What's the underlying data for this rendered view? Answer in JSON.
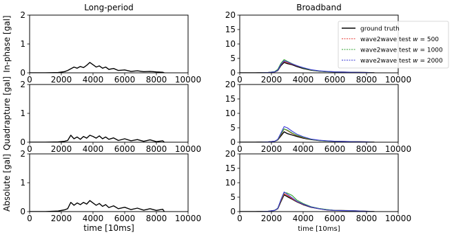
{
  "chart_data": [
    {
      "type": "line",
      "title": "Long-period",
      "ylabel": "In-phase [gal]",
      "xlabel": "",
      "xlim": [
        0,
        10000
      ],
      "ylim": [
        0,
        2
      ],
      "xticks": [
        "0",
        "2000",
        "4000",
        "6000",
        "8000",
        "10000"
      ],
      "yticks": [
        "0",
        "1",
        "2"
      ],
      "series": [
        {
          "color": "#000000",
          "x": [
            0,
            1000,
            1800,
            2200,
            2400,
            2600,
            2800,
            3000,
            3200,
            3400,
            3600,
            3800,
            4000,
            4200,
            4400,
            4600,
            4800,
            5000,
            5300,
            5600,
            6000,
            6400,
            6800,
            7200,
            7600,
            8000,
            8400,
            8500
          ],
          "y": [
            0,
            0,
            0.01,
            0.04,
            0.08,
            0.14,
            0.2,
            0.16,
            0.22,
            0.18,
            0.26,
            0.36,
            0.28,
            0.2,
            0.24,
            0.16,
            0.2,
            0.12,
            0.15,
            0.08,
            0.1,
            0.05,
            0.07,
            0.04,
            0.05,
            0.03,
            0.02,
            0.0
          ]
        }
      ]
    },
    {
      "type": "line",
      "title": "Broadband",
      "xlabel": "",
      "xlim": [
        0,
        10000
      ],
      "ylim": [
        0,
        20
      ],
      "xticks": [
        "0",
        "2000",
        "4000",
        "6000",
        "8000",
        "10000"
      ],
      "yticks": [
        "0",
        "5",
        "10",
        "15",
        "20"
      ],
      "legend": "top-right",
      "series": [
        {
          "name": "ground truth",
          "color": "#000000",
          "x": [
            0,
            1000,
            1800,
            2200,
            2400,
            2600,
            2800,
            3000,
            3300,
            3600,
            4000,
            4500,
            5000,
            5500,
            6000,
            7000,
            8000,
            8500
          ],
          "y": [
            0,
            0,
            0.1,
            0.3,
            0.8,
            2.5,
            3.6,
            3.2,
            2.8,
            2.2,
            1.5,
            0.9,
            0.6,
            0.4,
            0.3,
            0.2,
            0.1,
            0
          ]
        },
        {
          "name": "wave2wave test $w = 500$",
          "color": "#e8423b",
          "x": [
            0,
            1000,
            1800,
            2200,
            2400,
            2600,
            2800,
            3000,
            3300,
            3600,
            4000,
            4500,
            5000,
            5500,
            6000,
            7000,
            8000,
            8500
          ],
          "y": [
            0,
            0,
            0.1,
            0.3,
            0.9,
            2.8,
            4.0,
            3.5,
            3.0,
            2.4,
            1.7,
            1.0,
            0.6,
            0.4,
            0.3,
            0.2,
            0.1,
            0
          ]
        },
        {
          "name": "wave2wave test $w = 1000$",
          "color": "#2ca02c",
          "x": [
            0,
            1000,
            1800,
            2200,
            2400,
            2600,
            2800,
            3000,
            3300,
            3600,
            4000,
            4500,
            5000,
            5500,
            6000,
            7000,
            8000,
            8500
          ],
          "y": [
            0,
            0,
            0.1,
            0.4,
            1.2,
            3.3,
            4.6,
            4.0,
            3.2,
            2.5,
            1.7,
            1.0,
            0.6,
            0.4,
            0.3,
            0.2,
            0.1,
            0
          ]
        },
        {
          "name": "wave2wave test $w = 2000$",
          "color": "#3b3bd6",
          "x": [
            0,
            1000,
            1800,
            2200,
            2400,
            2600,
            2800,
            3000,
            3300,
            3600,
            4000,
            4500,
            5000,
            5500,
            6000,
            7000,
            8000,
            8500
          ],
          "y": [
            0,
            0,
            0.1,
            0.3,
            0.9,
            2.9,
            4.2,
            3.8,
            3.1,
            2.5,
            1.8,
            1.1,
            0.7,
            0.5,
            0.3,
            0.2,
            0.1,
            0
          ]
        }
      ]
    },
    {
      "type": "line",
      "ylabel": "Quadrapture [gal]",
      "xlabel": "",
      "xlim": [
        0,
        10000
      ],
      "ylim": [
        0,
        2
      ],
      "xticks": [
        "0",
        "2000",
        "4000",
        "6000",
        "8000",
        "10000"
      ],
      "yticks": [
        "0",
        "1",
        "2"
      ],
      "series": [
        {
          "color": "#000000",
          "x": [
            0,
            1000,
            1800,
            2200,
            2400,
            2600,
            2800,
            3000,
            3200,
            3400,
            3600,
            3800,
            4000,
            4200,
            4400,
            4600,
            4800,
            5000,
            5300,
            5600,
            6000,
            6400,
            6800,
            7200,
            7600,
            8000,
            8400,
            8500
          ],
          "y": [
            0,
            0,
            0.01,
            0.03,
            0.06,
            0.24,
            0.12,
            0.18,
            0.1,
            0.2,
            0.14,
            0.24,
            0.2,
            0.14,
            0.22,
            0.12,
            0.18,
            0.1,
            0.15,
            0.06,
            0.12,
            0.05,
            0.09,
            0.03,
            0.08,
            0.02,
            0.05,
            0.0
          ]
        }
      ]
    },
    {
      "type": "line",
      "xlabel": "",
      "xlim": [
        0,
        10000
      ],
      "ylim": [
        0,
        20
      ],
      "xticks": [
        "0",
        "2000",
        "4000",
        "6000",
        "8000",
        "10000"
      ],
      "yticks": [
        "0",
        "5",
        "10",
        "15",
        "20"
      ],
      "series": [
        {
          "color": "#000000",
          "x": [
            0,
            1000,
            1800,
            2200,
            2400,
            2600,
            2800,
            3000,
            3300,
            3600,
            4000,
            4500,
            5000,
            5500,
            6000,
            7000,
            8000,
            8500
          ],
          "y": [
            0,
            0,
            0.1,
            0.3,
            0.8,
            2.2,
            3.6,
            3.0,
            2.5,
            2.0,
            1.4,
            0.9,
            0.6,
            0.4,
            0.3,
            0.2,
            0.1,
            0
          ]
        },
        {
          "color": "#e8423b",
          "x": [
            0,
            1000,
            1800,
            2200,
            2400,
            2600,
            2800,
            3000,
            3300,
            3600,
            4000,
            4500,
            5000,
            5500,
            6000,
            7000,
            8000,
            8500
          ],
          "y": [
            0,
            0,
            0.1,
            0.3,
            0.9,
            2.6,
            4.6,
            4.0,
            3.0,
            2.3,
            1.6,
            1.0,
            0.6,
            0.4,
            0.3,
            0.2,
            0.1,
            0
          ]
        },
        {
          "color": "#2ca02c",
          "x": [
            0,
            1000,
            1800,
            2200,
            2400,
            2600,
            2800,
            3000,
            3300,
            3600,
            4000,
            4500,
            5000,
            5500,
            6000,
            7000,
            8000,
            8500
          ],
          "y": [
            0,
            0,
            0.1,
            0.3,
            0.9,
            2.8,
            4.6,
            4.2,
            3.2,
            2.4,
            1.7,
            1.0,
            0.6,
            0.4,
            0.3,
            0.2,
            0.1,
            0
          ]
        },
        {
          "color": "#3b3bd6",
          "x": [
            0,
            1000,
            1800,
            2200,
            2400,
            2600,
            2800,
            3000,
            3300,
            3600,
            4000,
            4500,
            5000,
            5500,
            6000,
            7000,
            8000,
            8500
          ],
          "y": [
            0,
            0,
            0.1,
            0.3,
            1.0,
            3.2,
            5.4,
            5.0,
            3.8,
            2.8,
            1.9,
            1.1,
            0.7,
            0.5,
            0.3,
            0.2,
            0.1,
            0
          ]
        }
      ]
    },
    {
      "type": "line",
      "ylabel": "Absolute [gal]",
      "xlabel": "time [10ms]",
      "xlim": [
        0,
        10000
      ],
      "ylim": [
        0,
        2
      ],
      "xticks": [
        "0",
        "2000",
        "4000",
        "6000",
        "8000",
        "10000"
      ],
      "yticks": [
        "0",
        "1",
        "2"
      ],
      "series": [
        {
          "color": "#000000",
          "x": [
            0,
            1000,
            1800,
            2200,
            2400,
            2600,
            2800,
            3000,
            3200,
            3400,
            3600,
            3800,
            4000,
            4200,
            4400,
            4600,
            4800,
            5000,
            5300,
            5600,
            6000,
            6400,
            6800,
            7200,
            7600,
            8000,
            8400,
            8500
          ],
          "y": [
            0,
            0,
            0.02,
            0.06,
            0.1,
            0.32,
            0.22,
            0.3,
            0.24,
            0.32,
            0.26,
            0.38,
            0.3,
            0.22,
            0.28,
            0.18,
            0.24,
            0.14,
            0.2,
            0.1,
            0.15,
            0.07,
            0.12,
            0.05,
            0.1,
            0.04,
            0.08,
            0.0
          ]
        }
      ]
    },
    {
      "type": "line",
      "xlabel": "time [10ms]",
      "xlim": [
        0,
        10000
      ],
      "ylim": [
        0,
        20
      ],
      "xticks": [
        "0",
        "2000",
        "4000",
        "6000",
        "8000",
        "10000"
      ],
      "yticks": [
        "0",
        "5",
        "10",
        "15",
        "20"
      ],
      "series": [
        {
          "color": "#000000",
          "x": [
            0,
            1000,
            1800,
            2200,
            2400,
            2600,
            2800,
            3000,
            3300,
            3600,
            4000,
            4500,
            5000,
            5500,
            6000,
            7000,
            8000,
            8500
          ],
          "y": [
            0,
            0,
            0.1,
            0.4,
            1.0,
            3.5,
            5.8,
            5.2,
            4.3,
            3.4,
            2.4,
            1.5,
            1.0,
            0.6,
            0.4,
            0.3,
            0.1,
            0
          ]
        },
        {
          "color": "#e8423b",
          "x": [
            0,
            1000,
            1800,
            2200,
            2400,
            2600,
            2800,
            3000,
            3300,
            3600,
            4000,
            4500,
            5000,
            5500,
            6000,
            7000,
            8000,
            8500
          ],
          "y": [
            0,
            0,
            0.1,
            0.4,
            1.1,
            3.8,
            6.2,
            5.6,
            4.5,
            3.5,
            2.5,
            1.6,
            1.0,
            0.6,
            0.4,
            0.3,
            0.1,
            0
          ]
        },
        {
          "color": "#2ca02c",
          "x": [
            0,
            1000,
            1800,
            2200,
            2400,
            2600,
            2800,
            3000,
            3300,
            3600,
            4000,
            4500,
            5000,
            5500,
            6000,
            7000,
            8000,
            8500
          ],
          "y": [
            0,
            0,
            0.1,
            0.4,
            1.2,
            4.0,
            6.6,
            6.4,
            5.6,
            4.0,
            2.8,
            1.7,
            1.1,
            0.7,
            0.4,
            0.3,
            0.1,
            0
          ]
        },
        {
          "color": "#3b3bd6",
          "x": [
            0,
            1000,
            1800,
            2200,
            2400,
            2600,
            2800,
            3000,
            3300,
            3600,
            4000,
            4500,
            5000,
            5500,
            6000,
            7000,
            8000,
            8500
          ],
          "y": [
            0,
            0,
            0.1,
            0.4,
            1.1,
            4.2,
            6.8,
            6.0,
            4.8,
            3.6,
            2.6,
            1.6,
            1.0,
            0.6,
            0.4,
            0.3,
            0.1,
            0
          ]
        }
      ]
    }
  ]
}
